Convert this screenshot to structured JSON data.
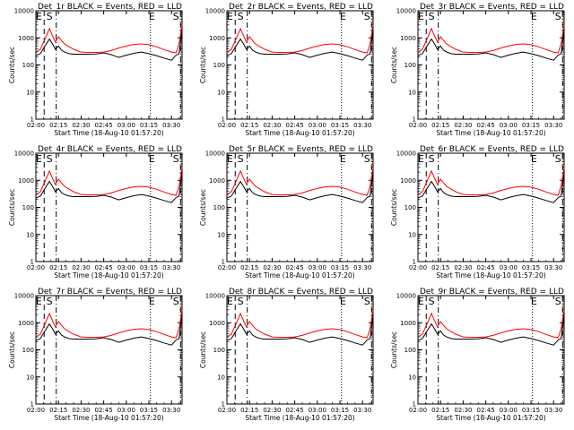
{
  "shared": {
    "ylabel": "Counts/sec",
    "xlabel": "Start Time (18-Aug-10 01:57:20)",
    "x_ticks": [
      "02:00",
      "02:15",
      "02:30",
      "02:45",
      "03:00",
      "03:15",
      "03:30"
    ],
    "y_ticks": [
      "1",
      "10",
      "100",
      "1000",
      "10000"
    ],
    "colors": {
      "events": "#000000",
      "lld": "#ff0000",
      "axes": "#000000"
    }
  },
  "chart_data": [
    {
      "type": "line",
      "title": "Det_1r BLACK = Events, RED = LLD",
      "flags": [
        "E",
        "S",
        "E",
        "S"
      ]
    },
    {
      "type": "line",
      "title": "Det_2r BLACK = Events, RED = LLD",
      "flags": [
        "E",
        "S",
        "E",
        "S"
      ]
    },
    {
      "type": "line",
      "title": "Det_3r BLACK = Events, RED = LLD",
      "flags": [
        "E",
        "S",
        "E",
        "S"
      ]
    },
    {
      "type": "line",
      "title": "Det_4r BLACK = Events, RED = LLD",
      "flags": [
        "E",
        "S",
        "E",
        "S"
      ]
    },
    {
      "type": "line",
      "title": "Det_5r BLACK = Events, RED = LLD",
      "flags": [
        "E",
        "S",
        "E",
        "S"
      ]
    },
    {
      "type": "line",
      "title": "Det_6r BLACK = Events, RED = LLD",
      "flags": [
        "E",
        "S",
        "E",
        "S"
      ]
    },
    {
      "type": "line",
      "title": "Det_7r BLACK = Events, RED = LLD",
      "flags": [
        "E",
        "S",
        "E",
        "S"
      ]
    },
    {
      "type": "line",
      "title": "Det_8r BLACK = Events, RED = LLD",
      "flags": [
        "E",
        "S",
        "E",
        "S"
      ]
    },
    {
      "type": "line",
      "title": "Det_9r BLACK = Events, RED = LLD",
      "flags": [
        "E",
        "S",
        "E",
        "S"
      ]
    }
  ],
  "series_shape": {
    "x_minutes_after_0200": [
      0,
      3,
      6,
      9,
      11,
      13,
      15,
      17,
      19,
      22,
      25,
      30,
      35,
      40,
      45,
      50,
      55,
      60,
      65,
      70,
      75,
      80,
      85,
      90,
      93,
      95,
      97
    ],
    "lld": [
      300,
      380,
      900,
      2200,
      1200,
      700,
      1100,
      800,
      600,
      470,
      380,
      300,
      290,
      290,
      300,
      340,
      420,
      500,
      570,
      600,
      560,
      470,
      370,
      300,
      280,
      600,
      3000
    ],
    "events": [
      220,
      260,
      500,
      900,
      600,
      380,
      500,
      350,
      300,
      260,
      250,
      250,
      250,
      255,
      280,
      240,
      190,
      230,
      270,
      300,
      260,
      220,
      180,
      150,
      230,
      260,
      2000
    ],
    "vlines": [
      {
        "x_minutes_after_0200": 5.5,
        "style": "dashed"
      },
      {
        "x_minutes_after_0200": 13.5,
        "style": "dashdot"
      },
      {
        "x_minutes_after_0200": 76,
        "style": "dotted"
      },
      {
        "x_minutes_after_0200": 96,
        "style": "dashdot"
      }
    ],
    "x_range_minutes_after_0200": [
      0,
      97
    ],
    "y_range": [
      1,
      10000
    ],
    "y_scale": "log"
  }
}
